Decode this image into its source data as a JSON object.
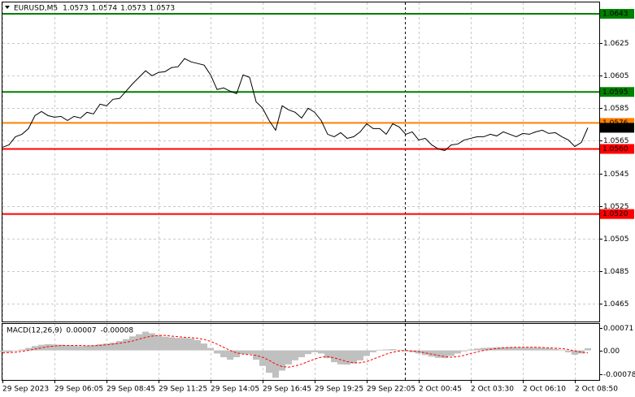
{
  "chart_data": [
    {
      "type": "line",
      "title": "EURUSD,M5",
      "ohlc": [
        1.0573,
        1.0574,
        1.0573,
        1.0573
      ],
      "color": "#000000",
      "categories": [
        "29 Sep 2023",
        null,
        null,
        null,
        null,
        null,
        null,
        null,
        "29 Sep 06:05",
        null,
        null,
        null,
        null,
        null,
        null,
        null,
        "29 Sep 08:45",
        null,
        null,
        null,
        null,
        null,
        null,
        null,
        "29 Sep 11:25",
        null,
        null,
        null,
        null,
        null,
        null,
        null,
        "29 Sep 14:05",
        null,
        null,
        null,
        null,
        null,
        null,
        null,
        "29 Sep 16:45",
        null,
        null,
        null,
        null,
        null,
        null,
        null,
        "29 Sep 19:25",
        null,
        null,
        null,
        null,
        null,
        null,
        null,
        "29 Sep 22:05",
        null,
        null,
        null,
        null,
        null,
        null,
        null,
        "2 Oct 00:45",
        null,
        null,
        null,
        null,
        null,
        null,
        null,
        "2 Oct 03:30",
        null,
        null,
        null,
        null,
        null,
        null,
        null,
        "2 Oct 06:10",
        null,
        null,
        null,
        null,
        null,
        null,
        null,
        "2 Oct 08:50",
        null,
        null
      ],
      "values": [
        1.0561,
        1.05625,
        1.05675,
        1.0569,
        1.05725,
        1.05805,
        1.0583,
        1.05805,
        1.05795,
        1.058,
        1.05775,
        1.058,
        1.0579,
        1.05825,
        1.05815,
        1.05875,
        1.05865,
        1.05905,
        1.0591,
        1.05955,
        1.06,
        1.0604,
        1.0608,
        1.0605,
        1.0607,
        1.06075,
        1.061,
        1.06105,
        1.06155,
        1.06135,
        1.06125,
        1.06115,
        1.06055,
        1.05965,
        1.05975,
        1.05955,
        1.0594,
        1.06055,
        1.0604,
        1.0589,
        1.0585,
        1.05775,
        1.05715,
        1.05865,
        1.0584,
        1.05825,
        1.0579,
        1.0585,
        1.05825,
        1.05775,
        1.0569,
        1.05675,
        1.057,
        1.05665,
        1.05675,
        1.05705,
        1.05755,
        1.05725,
        1.05725,
        1.0569,
        1.05755,
        1.05735,
        1.0569,
        1.05705,
        1.05655,
        1.05665,
        1.05625,
        1.056,
        1.0559,
        1.05625,
        1.0563,
        1.05655,
        1.05665,
        1.05675,
        1.05675,
        1.0569,
        1.0568,
        1.05705,
        1.0569,
        1.05675,
        1.05695,
        1.0569,
        1.05705,
        1.05715,
        1.05695,
        1.057,
        1.05675,
        1.05655,
        1.05615,
        1.0564,
        1.0573
      ],
      "ylim": [
        1.0454,
        1.065
      ],
      "yticks": [
        1.0625,
        1.0605,
        1.0585,
        1.0565,
        1.0545,
        1.0525,
        1.0505,
        1.0485,
        1.0465
      ],
      "grid": true,
      "levels": [
        {
          "value": 1.0643,
          "color": "#008000"
        },
        {
          "value": 1.0595,
          "color": "#008000"
        },
        {
          "value": 1.0576,
          "color": "#ff8000"
        },
        {
          "value": 1.056,
          "label": "1.0560",
          "color": "#ff0000"
        },
        {
          "value": 1.052,
          "label": "1.0520",
          "color": "#ff0000"
        }
      ]
    },
    {
      "type": "macd",
      "title": "MACD(12,26,9)",
      "series": [
        {
          "type": "bar",
          "color": "#c0c0c0",
          "values": [
            -5e-05,
            -5e-05,
            -2e-05,
            3e-05,
            8e-05,
            0.00014,
            0.00018,
            0.0002,
            0.00019,
            0.00018,
            0.00016,
            0.00015,
            0.00014,
            0.00015,
            0.00017,
            0.0002,
            0.00022,
            0.00025,
            0.0003,
            0.00036,
            0.00045,
            0.00052,
            0.0006,
            0.00055,
            0.00048,
            0.00044,
            0.00042,
            0.0004,
            0.0004,
            0.00038,
            0.00033,
            0.00022,
            8e-05,
            -0.0001,
            -0.00022,
            -0.0003,
            -0.00022,
            -0.00012,
            -0.00012,
            -0.0003,
            -0.0005,
            -0.00072,
            -0.00088,
            -0.00065,
            -0.00045,
            -0.00032,
            -0.00022,
            -0.00012,
            -6e-05,
            -0.0001,
            -0.00025,
            -0.00038,
            -0.00045,
            -0.00046,
            -0.00042,
            -0.00032,
            -0.00018,
            -6e-05,
            2e-05,
            3e-05,
            4e-05,
            2e-05,
            -3e-05,
            -6e-05,
            -0.0001,
            -0.00015,
            -0.0002,
            -0.00024,
            -0.00025,
            -0.00018,
            -0.0001,
            -3e-05,
            3e-05,
            6e-05,
            8e-05,
            9e-05,
            0.0001,
            0.0001,
            0.00011,
            0.0001,
            0.0001,
            9e-05,
            9e-05,
            8e-05,
            7e-05,
            5e-05,
            2e-05,
            -6e-05,
            -0.00014,
            -0.0001,
            7e-05
          ]
        },
        {
          "type": "line",
          "color": "#ff0000",
          "values": [
            -8e-05,
            -7e-05,
            -6e-05,
            -3e-05,
            0,
            4e-05,
            8e-05,
            0.00012,
            0.00014,
            0.00016,
            0.00016,
            0.00016,
            0.00016,
            0.00015,
            0.00015,
            0.00016,
            0.00018,
            0.0002,
            0.00023,
            0.00026,
            0.0003,
            0.00036,
            0.00042,
            0.00046,
            0.00048,
            0.00048,
            0.00046,
            0.00044,
            0.00042,
            0.00041,
            0.00039,
            0.00035,
            0.00029,
            0.0002,
            0.0001,
            0,
            -8e-05,
            -0.00012,
            -0.00014,
            -0.00016,
            -0.00022,
            -0.00032,
            -0.00044,
            -0.00052,
            -0.00054,
            -0.0005,
            -0.00044,
            -0.00036,
            -0.00028,
            -0.00022,
            -0.0002,
            -0.00024,
            -0.0003,
            -0.00036,
            -0.0004,
            -0.0004,
            -0.00036,
            -0.00028,
            -0.0002,
            -0.00012,
            -6e-05,
            -2e-05,
            0,
            -2e-05,
            -4e-05,
            -8e-05,
            -0.00012,
            -0.00016,
            -0.0002,
            -0.00022,
            -0.0002,
            -0.00016,
            -0.0001,
            -5e-05,
            0,
            3e-05,
            6e-05,
            8e-05,
            9e-05,
            0.0001,
            0.0001,
            0.0001,
            0.0001,
            9e-05,
            8e-05,
            7e-05,
            6e-05,
            3e-05,
            -2e-05,
            -6e-05,
            -8e-05
          ]
        }
      ],
      "ylim": [
        -0.00095,
        0.00085
      ],
      "yticks": [
        0.00071,
        {
          "value": 0,
          "label": "0.00"
        },
        -0.00078
      ]
    }
  ]
}
